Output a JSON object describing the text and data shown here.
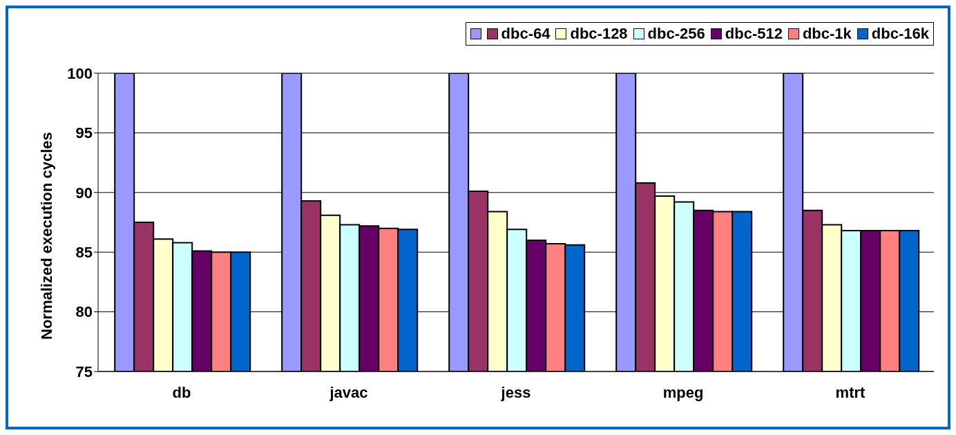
{
  "chart_data": {
    "type": "bar",
    "ylabel": "Normalized execution cycles",
    "categories": [
      "db",
      "javac",
      "jess",
      "mpeg",
      "mtrt"
    ],
    "series": [
      {
        "color": "#9999ff",
        "values": [
          100,
          100,
          100,
          100,
          100
        ]
      },
      {
        "name": "dbc-64",
        "color": "#993366",
        "values": [
          87.5,
          89.3,
          90.1,
          90.8,
          88.5
        ]
      },
      {
        "name": "dbc-128",
        "color": "#ffffcc",
        "values": [
          86.1,
          88.1,
          88.4,
          89.7,
          87.3
        ]
      },
      {
        "name": "dbc-256",
        "color": "#ccffff",
        "values": [
          85.8,
          87.3,
          86.9,
          89.2,
          86.8
        ]
      },
      {
        "name": "dbc-512",
        "color": "#660066",
        "values": [
          85.1,
          87.2,
          86.0,
          88.5,
          86.8
        ]
      },
      {
        "name": "dbc-1k",
        "color": "#ff8080",
        "values": [
          85.0,
          87.0,
          85.7,
          88.4,
          86.8
        ]
      },
      {
        "name": "dbc-16k",
        "color": "#0066cc",
        "values": [
          85.0,
          86.9,
          85.6,
          88.4,
          86.8
        ]
      }
    ],
    "ylim": [
      75,
      100
    ],
    "yticks": [
      75,
      80,
      85,
      90,
      95,
      100
    ],
    "grid": "y",
    "legend": "top right"
  }
}
